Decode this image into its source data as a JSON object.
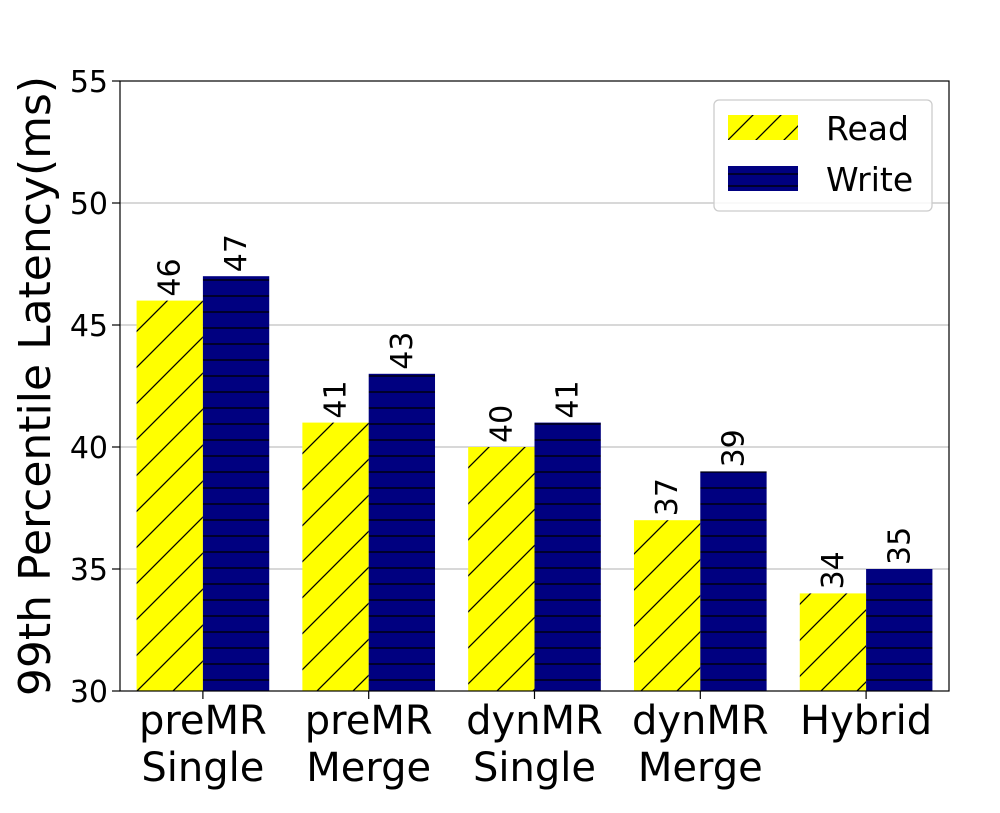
{
  "chart_data": {
    "type": "bar",
    "title": "",
    "xlabel": "",
    "ylabel": "99th Percentile Latency(ms)",
    "categories": [
      [
        "preMR",
        "Single"
      ],
      [
        "preMR",
        "Merge"
      ],
      [
        "dynMR",
        "Single"
      ],
      [
        "dynMR",
        "Merge"
      ],
      [
        "Hybrid"
      ]
    ],
    "series": [
      {
        "name": "Read",
        "values": [
          46,
          41,
          40,
          37,
          34
        ],
        "color": "#ffff00",
        "hatch": "diagonal"
      },
      {
        "name": "Write",
        "values": [
          47,
          43,
          41,
          39,
          35
        ],
        "color": "#000080",
        "hatch": "horizontal"
      }
    ],
    "ylim": [
      30,
      55
    ],
    "yticks": [
      30,
      35,
      40,
      45,
      50,
      55
    ],
    "grid": "horizontal",
    "legend_position": "top-right",
    "data_labels": true
  }
}
